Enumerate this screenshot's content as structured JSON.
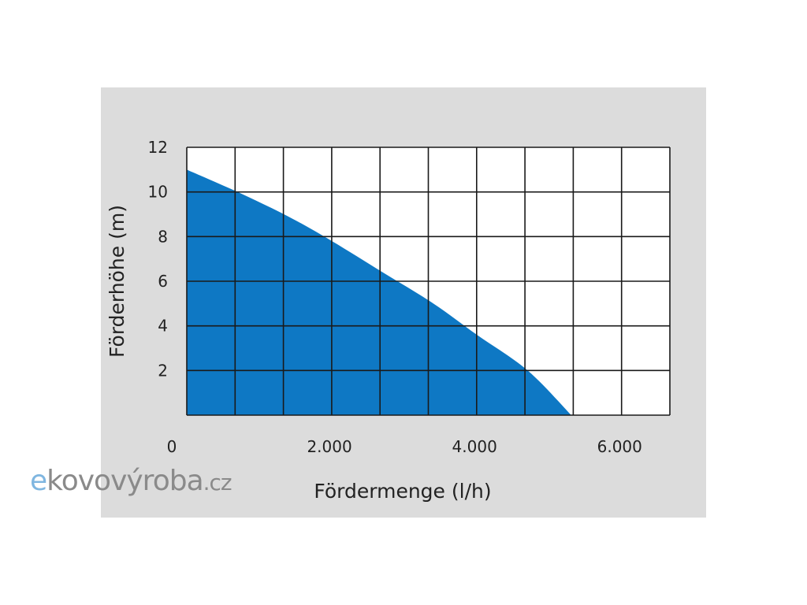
{
  "chart_data": {
    "type": "area",
    "title": "",
    "xlabel": "Fördermenge (l/h)",
    "ylabel": "Förderhöhe (m)",
    "xlim": [
      0,
      6660
    ],
    "ylim": [
      0,
      12
    ],
    "x_ticks": [
      {
        "value": 0,
        "label": "0"
      },
      {
        "value": 2000,
        "label": "2.000"
      },
      {
        "value": 4000,
        "label": "4.000"
      },
      {
        "value": 6000,
        "label": "6.000"
      }
    ],
    "y_ticks": [
      {
        "value": 2,
        "label": "2"
      },
      {
        "value": 4,
        "label": "4"
      },
      {
        "value": 6,
        "label": "6"
      },
      {
        "value": 8,
        "label": "8"
      },
      {
        "value": 10,
        "label": "10"
      },
      {
        "value": 12,
        "label": "12"
      }
    ],
    "grid": true,
    "grid_columns": 10,
    "grid_rows": 6,
    "series": [
      {
        "x": [
          0,
          700,
          1400,
          2000,
          2700,
          3400,
          4000,
          4700,
          5300
        ],
        "y": [
          11,
          10,
          8.9,
          7.8,
          6.4,
          5.0,
          3.6,
          2.0,
          0
        ],
        "color": "#0e78c4"
      }
    ],
    "background": "#dcdcdc"
  },
  "watermark": {
    "text": "ekovovýroba.cz",
    "e": "e",
    "main": "kovovýroba",
    "tld": ".cz"
  }
}
